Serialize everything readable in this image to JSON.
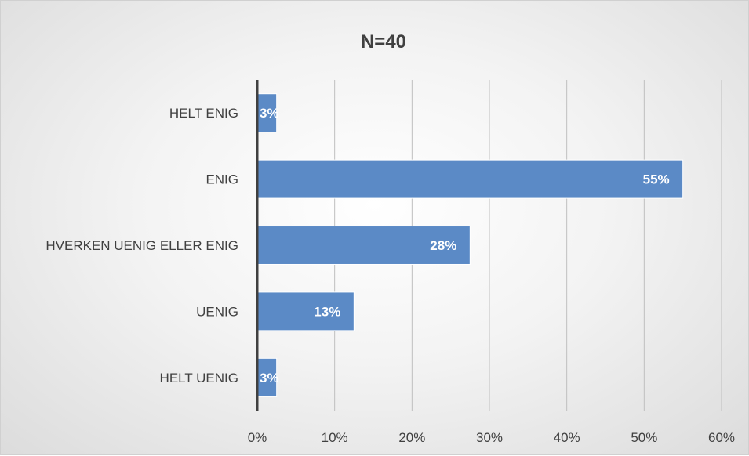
{
  "chart_data": {
    "type": "bar",
    "orientation": "horizontal",
    "title": "N=40",
    "categories": [
      "HELT ENIG",
      "ENIG",
      "HVERKEN UENIG ELLER ENIG",
      "UENIG",
      "HELT UENIG"
    ],
    "values": [
      2.5,
      55,
      27.5,
      12.5,
      2.5
    ],
    "data_labels": [
      "3%",
      "55%",
      "28%",
      "13%",
      "3%"
    ],
    "xlim": [
      0,
      60
    ],
    "x_ticks": [
      0,
      10,
      20,
      30,
      40,
      50,
      60
    ],
    "x_tick_labels": [
      "0%",
      "10%",
      "20%",
      "30%",
      "40%",
      "50%",
      "60%"
    ],
    "grid": true,
    "legend": "none",
    "bar_color": "#5b8ac6"
  }
}
